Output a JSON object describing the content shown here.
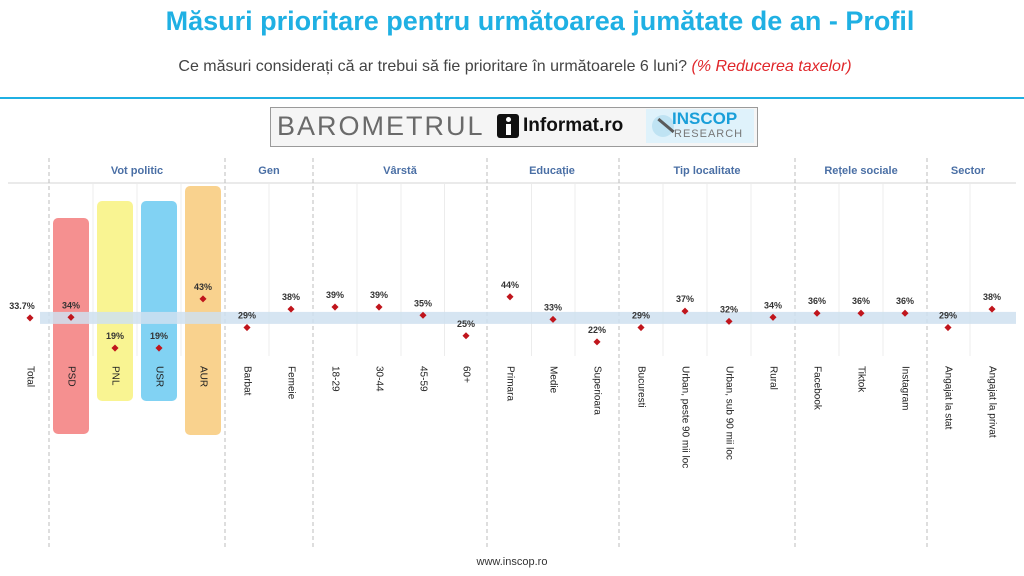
{
  "title": "Măsuri prioritare pentru următoarea jumătate de an - Profil",
  "subtitle": {
    "question": "Ce măsuri considerați că ar trebui să fie prioritare în următoarele 6 luni?",
    "highlight": "(% Reducerea taxelor)"
  },
  "logos": {
    "barometrul": "BAROMETRUL",
    "informat": "Informat.ro",
    "inscop": "INSCOP",
    "research": "RESEARCH"
  },
  "footer": "www.inscop.ro",
  "colors": {
    "title": "#1fb0e3",
    "marker": "#c0151c",
    "band": "#cfe0f0",
    "PSD": "#f26b6b",
    "PNL": "#f7f06e",
    "USR": "#57c3ef",
    "AUR": "#f7c368"
  },
  "chart_data": {
    "type": "scatter",
    "ylim": [
      0,
      55
    ],
    "reference_band": 33.7,
    "groups": [
      {
        "name": "Vot politic",
        "categories": [
          "PSD",
          "PNL",
          "USR",
          "AUR"
        ]
      },
      {
        "name": "Gen",
        "categories": [
          "Barbat",
          "Femeie"
        ]
      },
      {
        "name": "Vârstă",
        "categories": [
          "18-29",
          "30-44",
          "45-59",
          "60+"
        ]
      },
      {
        "name": "Educație",
        "categories": [
          "Primara",
          "Medie",
          "Superioara"
        ]
      },
      {
        "name": "Tip localitate",
        "categories": [
          "Bucuresti",
          "Urban, peste 90 mii loc",
          "Urban, sub 90 mii loc",
          "Rural"
        ]
      },
      {
        "name": "Rețele sociale",
        "categories": [
          "Facebook",
          "Tiktok",
          "Instagram"
        ]
      },
      {
        "name": "Sector",
        "categories": [
          "Angajat la stat",
          "Angajat la privat"
        ]
      }
    ],
    "categories": [
      "Total",
      "PSD",
      "PNL",
      "USR",
      "AUR",
      "Barbat",
      "Femeie",
      "18-29",
      "30-44",
      "45-59",
      "60+",
      "Primara",
      "Medie",
      "Superioara",
      "Bucuresti",
      "Urban, peste 90 mii loc",
      "Urban, sub 90 mii loc",
      "Rural",
      "Facebook",
      "Tiktok",
      "Instagram",
      "Angajat la stat",
      "Angajat la privat"
    ],
    "values": [
      33.7,
      34,
      19,
      19,
      43,
      29,
      38,
      39,
      39,
      35,
      25,
      44,
      33,
      22,
      29,
      37,
      32,
      34,
      36,
      36,
      36,
      29,
      38
    ],
    "value_labels": [
      "33.7%",
      "34%",
      "19%",
      "19%",
      "43%",
      "29%",
      "38%",
      "39%",
      "39%",
      "35%",
      "25%",
      "44%",
      "33%",
      "22%",
      "29%",
      "37%",
      "32%",
      "34%",
      "36%",
      "36%",
      "36%",
      "29%",
      "38%"
    ]
  }
}
